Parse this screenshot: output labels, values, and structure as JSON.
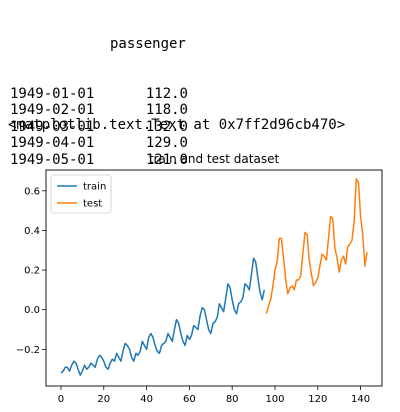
{
  "output": {
    "df_column": "passenger",
    "df_rows": [
      {
        "index": "1949-01-01",
        "value": "112.0"
      },
      {
        "index": "1949-02-01",
        "value": "118.0"
      },
      {
        "index": "1949-03-01",
        "value": "132.0"
      },
      {
        "index": "1949-04-01",
        "value": "129.0"
      },
      {
        "index": "1949-05-01",
        "value": "121.0"
      }
    ],
    "repr": "<matplotlib.text.Text at 0x7ff2d96cb470>"
  },
  "chart_data": {
    "type": "line",
    "title": "train and test dataset",
    "xlim": [
      -7,
      150
    ],
    "ylim": [
      -0.385,
      0.705
    ],
    "xticks": [
      0,
      20,
      40,
      60,
      80,
      100,
      120,
      140
    ],
    "yticks": [
      -0.2,
      0.0,
      0.2,
      0.4,
      0.6
    ],
    "ytick_labels": [
      "−0.2",
      "0.0",
      "0.2",
      "0.4",
      "0.6"
    ],
    "legend_position": "upper-left",
    "series": [
      {
        "name": "train",
        "color": "#1f77b4",
        "x": [
          0,
          1,
          2,
          3,
          4,
          5,
          6,
          7,
          8,
          9,
          10,
          11,
          12,
          13,
          14,
          15,
          16,
          17,
          18,
          19,
          20,
          21,
          22,
          23,
          24,
          25,
          26,
          27,
          28,
          29,
          30,
          31,
          32,
          33,
          34,
          35,
          36,
          37,
          38,
          39,
          40,
          41,
          42,
          43,
          44,
          45,
          46,
          47,
          48,
          49,
          50,
          51,
          52,
          53,
          54,
          55,
          56,
          57,
          58,
          59,
          60,
          61,
          62,
          63,
          64,
          65,
          66,
          67,
          68,
          69,
          70,
          71,
          72,
          73,
          74,
          75,
          76,
          77,
          78,
          79,
          80,
          81,
          82,
          83,
          84,
          85,
          86,
          87,
          88,
          89,
          90,
          91,
          92,
          93,
          94,
          95
        ],
        "y": [
          -0.32,
          -0.31,
          -0.29,
          -0.29,
          -0.31,
          -0.28,
          -0.26,
          -0.27,
          -0.3,
          -0.33,
          -0.31,
          -0.28,
          -0.3,
          -0.29,
          -0.27,
          -0.28,
          -0.29,
          -0.25,
          -0.23,
          -0.24,
          -0.26,
          -0.29,
          -0.3,
          -0.27,
          -0.25,
          -0.26,
          -0.22,
          -0.24,
          -0.26,
          -0.21,
          -0.17,
          -0.18,
          -0.2,
          -0.24,
          -0.26,
          -0.22,
          -0.23,
          -0.21,
          -0.16,
          -0.18,
          -0.2,
          -0.14,
          -0.12,
          -0.14,
          -0.18,
          -0.21,
          -0.22,
          -0.18,
          -0.17,
          -0.16,
          -0.12,
          -0.14,
          -0.16,
          -0.1,
          -0.05,
          -0.07,
          -0.12,
          -0.16,
          -0.18,
          -0.13,
          -0.15,
          -0.13,
          -0.08,
          -0.09,
          -0.1,
          -0.03,
          0.01,
          0.0,
          -0.05,
          -0.1,
          -0.12,
          -0.07,
          -0.06,
          -0.04,
          0.03,
          0.01,
          -0.01,
          0.06,
          0.13,
          0.11,
          0.05,
          0.0,
          -0.02,
          0.03,
          0.04,
          0.06,
          0.13,
          0.12,
          0.1,
          0.18,
          0.26,
          0.24,
          0.16,
          0.09,
          0.05,
          0.1
        ]
      },
      {
        "name": "test",
        "color": "#ff7f0e",
        "x": [
          96,
          97,
          98,
          99,
          100,
          101,
          102,
          103,
          104,
          105,
          106,
          107,
          108,
          109,
          110,
          111,
          112,
          113,
          114,
          115,
          116,
          117,
          118,
          119,
          120,
          121,
          122,
          123,
          124,
          125,
          126,
          127,
          128,
          129,
          130,
          131,
          132,
          133,
          134,
          135,
          136,
          137,
          138,
          139,
          140,
          141,
          142,
          143
        ],
        "y": [
          -0.02,
          0.02,
          0.05,
          0.12,
          0.2,
          0.24,
          0.36,
          0.36,
          0.26,
          0.15,
          0.08,
          0.11,
          0.12,
          0.1,
          0.15,
          0.15,
          0.17,
          0.28,
          0.39,
          0.38,
          0.25,
          0.18,
          0.12,
          0.14,
          0.16,
          0.22,
          0.28,
          0.27,
          0.25,
          0.36,
          0.47,
          0.46,
          0.31,
          0.26,
          0.19,
          0.25,
          0.27,
          0.23,
          0.32,
          0.33,
          0.35,
          0.45,
          0.66,
          0.64,
          0.47,
          0.38,
          0.22,
          0.29
        ]
      }
    ]
  }
}
